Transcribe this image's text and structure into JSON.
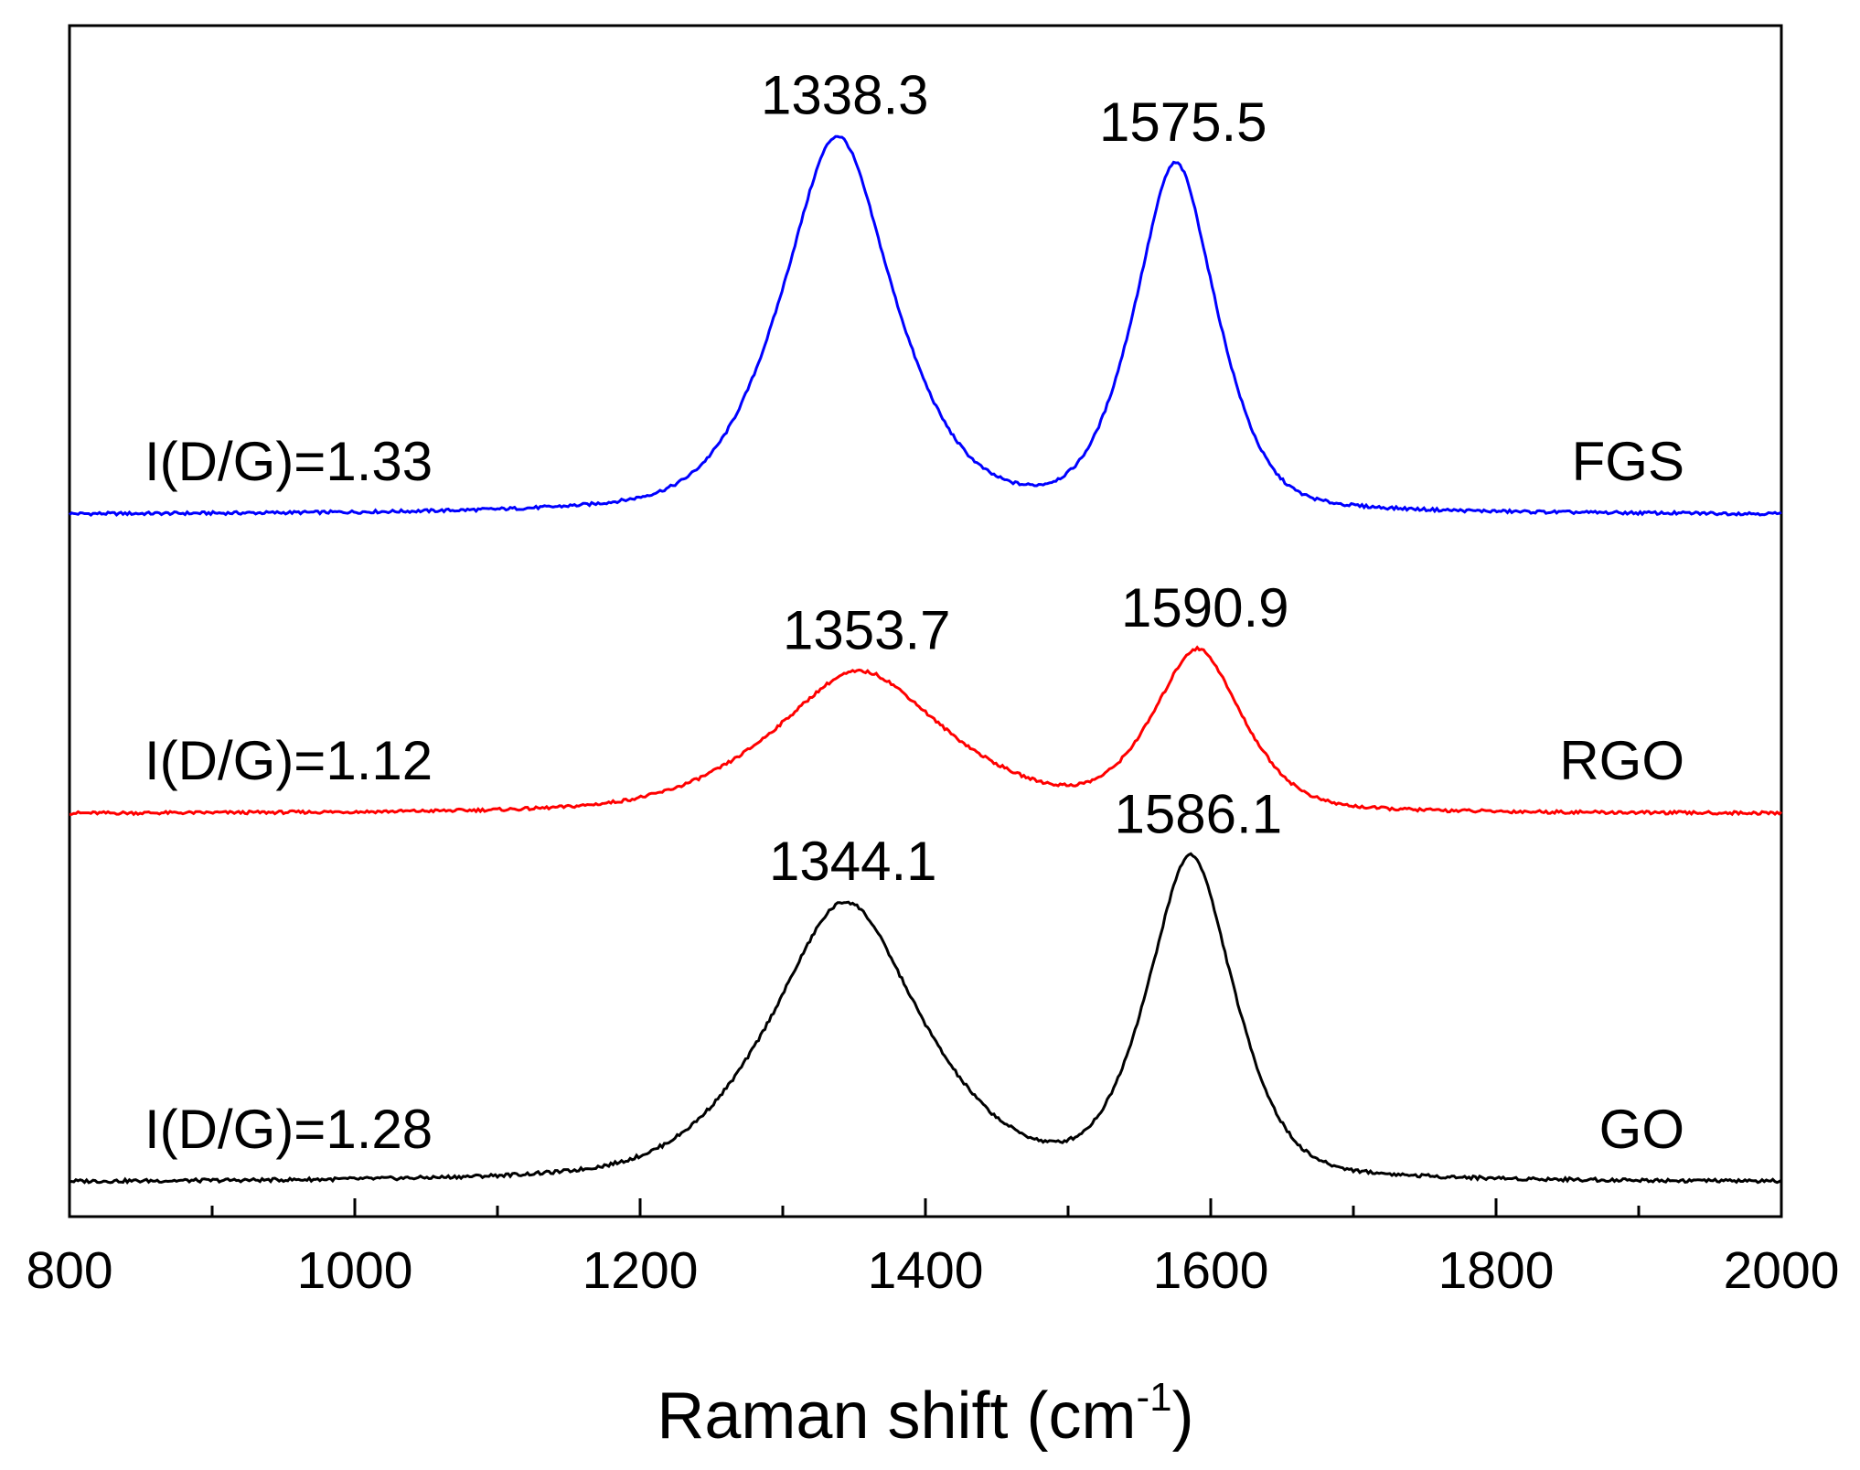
{
  "chart_data": {
    "type": "line",
    "title": "",
    "xlabel_main": "Raman shift (cm",
    "xlabel_sup": "-1",
    "xlabel_close": ")",
    "ylabel": "",
    "xlim": [
      800,
      2000
    ],
    "xticks": [
      800,
      1000,
      1200,
      1400,
      1600,
      1800,
      2000
    ],
    "xticks_minor": [
      900,
      1100,
      1300,
      1500,
      1700,
      1900
    ],
    "grid": false,
    "yticks_shown": false,
    "series": [
      {
        "name": "FGS",
        "color": "#0000ff",
        "id_ratio": "I(D/G)=1.33",
        "baseline": 0.0,
        "d_peak": {
          "position": 1338.3,
          "label": "1338.3",
          "height": 1.0,
          "width": 78
        },
        "g_peak": {
          "position": 1575.5,
          "label": "1575.5",
          "height": 0.92,
          "width": 55
        },
        "valley": 0.23
      },
      {
        "name": "RGO",
        "color": "#ff0000",
        "id_ratio": "I(D/G)=1.12",
        "baseline": 0.0,
        "d_peak": {
          "position": 1353.7,
          "label": "1353.7",
          "height": 0.38,
          "width": 120
        },
        "g_peak": {
          "position": 1590.9,
          "label": "1590.9",
          "height": 0.43,
          "width": 60
        },
        "valley": 0.2
      },
      {
        "name": "GO",
        "color": "#000000",
        "id_ratio": "I(D/G)=1.28",
        "baseline": 0.0,
        "d_peak": {
          "position": 1344.1,
          "label": "1344.1",
          "height": 0.66,
          "width": 105
        },
        "g_peak": {
          "position": 1586.1,
          "label": "1586.1",
          "height": 0.76,
          "width": 58
        },
        "valley": 0.32
      }
    ]
  }
}
